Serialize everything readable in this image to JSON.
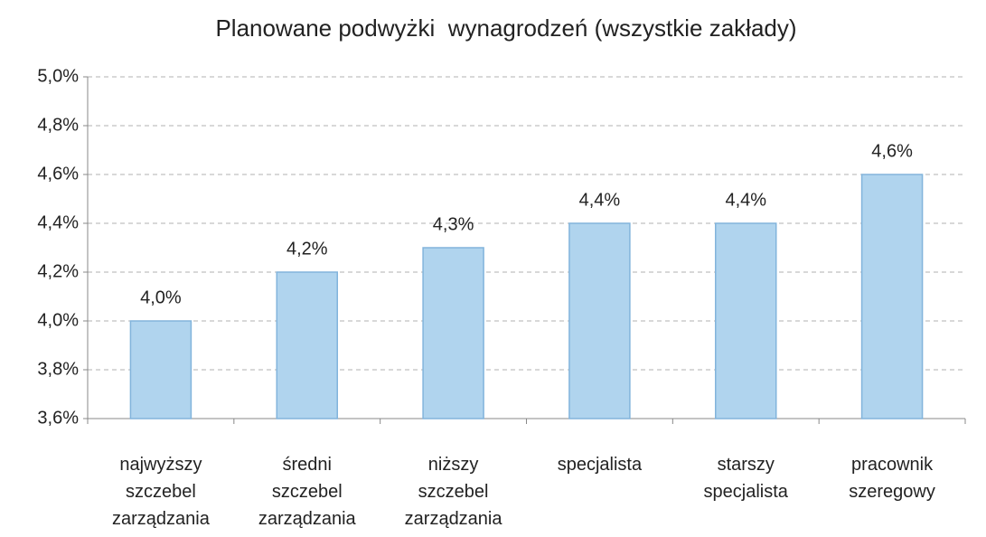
{
  "chart_data": {
    "type": "bar",
    "title": "Planowane podwyżki  wynagrodzeń (wszystkie zakłady)",
    "categories": [
      "najwyższy szczebel zarządzania",
      "średni szczebel zarządzania",
      "niższy szczebel zarządzania",
      "specjalista",
      "starszy specjalista",
      "pracownik szeregowy"
    ],
    "values": [
      4.0,
      4.2,
      4.3,
      4.4,
      4.4,
      4.6
    ],
    "value_labels": [
      "4,0%",
      "4,2%",
      "4,3%",
      "4,4%",
      "4,4%",
      "4,6%"
    ],
    "color": "#b0d4ee",
    "ylim": [
      3.6,
      5.0
    ],
    "yticks": [
      {
        "value": 3.6,
        "label": "3,6%"
      },
      {
        "value": 3.8,
        "label": "3,8%"
      },
      {
        "value": 4.0,
        "label": "4,0%"
      },
      {
        "value": 4.2,
        "label": "4,2%"
      },
      {
        "value": 4.4,
        "label": "4,4%"
      },
      {
        "value": 4.6,
        "label": "4,6%"
      },
      {
        "value": 4.8,
        "label": "4,8%"
      },
      {
        "value": 5.0,
        "label": "5,0%"
      }
    ],
    "grid": true
  }
}
